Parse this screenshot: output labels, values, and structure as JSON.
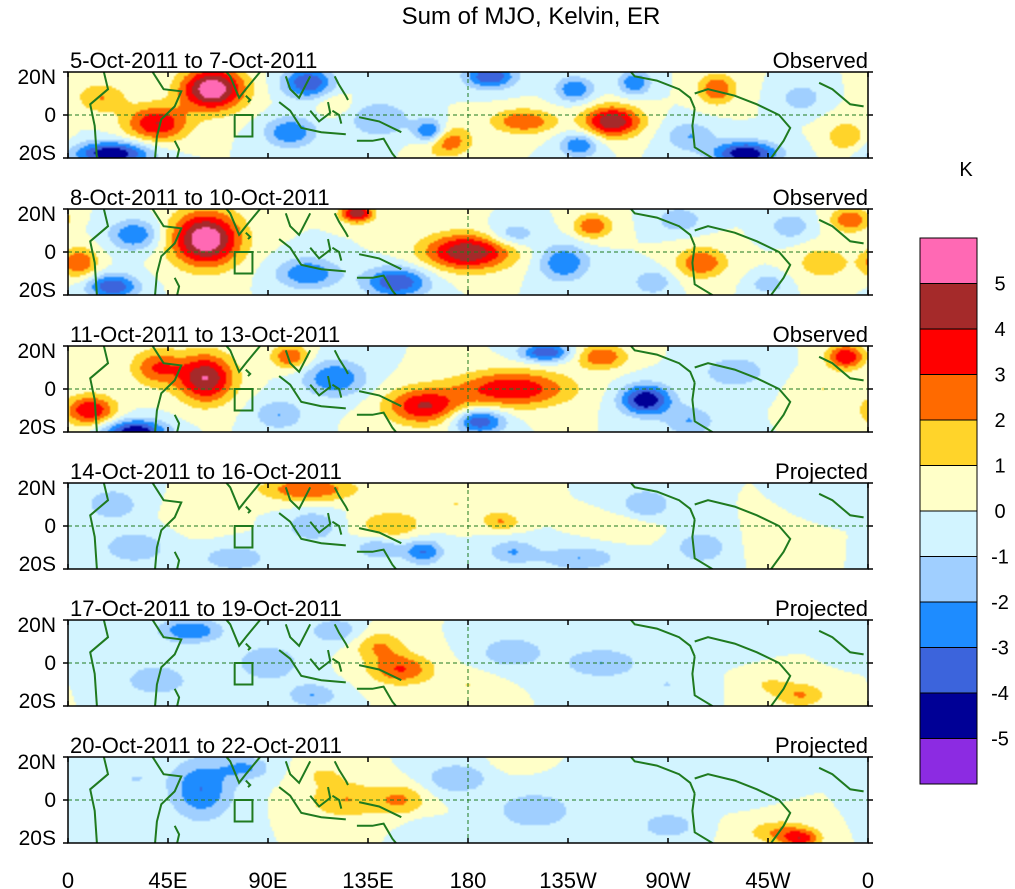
{
  "figure": {
    "title": "Sum of MJO, Kelvin, ER",
    "colorbar_unit": "K",
    "colorbar_levels": [
      "5",
      "4",
      "3",
      "2",
      "1",
      "0",
      "-1",
      "-2",
      "-3",
      "-4",
      "-5"
    ],
    "colorbar_colors": [
      "#ff69b4",
      "#a52a2a",
      "#ff0000",
      "#ff6a00",
      "#ffd42a",
      "#ffffc8",
      "#d2f4ff",
      "#a0cfff",
      "#1e8cff",
      "#3c64dc",
      "#000096",
      "#8c2be2"
    ],
    "x_ticks": [
      "0",
      "45E",
      "90E",
      "135E",
      "180",
      "135W",
      "90W",
      "45W",
      "0"
    ],
    "y_ticks": [
      "20N",
      "0",
      "20S"
    ]
  },
  "chart_data": {
    "type": "heatmap",
    "title": "Sum of MJO, Kelvin, ER",
    "unit": "K",
    "xlim": [
      0,
      360
    ],
    "ylim": [
      -20,
      20
    ],
    "color_levels": [
      -5,
      -4,
      -3,
      -2,
      -1,
      0,
      1,
      2,
      3,
      4,
      5
    ],
    "panels": [
      {
        "period": "5-Oct-2011 to 7-Oct-2011",
        "kind": "Observed",
        "blobs": [
          [
            65,
            12,
            10,
            7,
            6
          ],
          [
            40,
            -4,
            10,
            6,
            4
          ],
          [
            20,
            -18,
            12,
            4,
            -5
          ],
          [
            163,
            -8,
            5,
            4,
            -4
          ],
          [
            108,
            15,
            8,
            5,
            -4
          ],
          [
            190,
            18,
            8,
            4,
            -4
          ],
          [
            245,
            -3,
            9,
            5,
            5
          ],
          [
            228,
            12,
            6,
            4,
            -3
          ],
          [
            255,
            15,
            5,
            4,
            -3
          ],
          [
            205,
            -3,
            10,
            4,
            3
          ],
          [
            292,
            12,
            6,
            5,
            3
          ],
          [
            305,
            -18,
            10,
            4,
            -5
          ],
          [
            170,
            -12,
            8,
            5,
            3
          ],
          [
            330,
            8,
            6,
            4,
            -2
          ],
          [
            280,
            -10,
            8,
            5,
            -2
          ],
          [
            140,
            -2,
            10,
            6,
            -2
          ],
          [
            100,
            -8,
            8,
            5,
            -3
          ],
          [
            350,
            -10,
            6,
            5,
            2
          ],
          [
            230,
            -14,
            6,
            4,
            -3
          ],
          [
            15,
            8,
            8,
            5,
            2
          ],
          [
            120,
            5,
            6,
            4,
            1
          ]
        ]
      },
      {
        "period": "8-Oct-2011 to 10-Oct-2011",
        "kind": "Observed",
        "blobs": [
          [
            62,
            6,
            11,
            9,
            6
          ],
          [
            148,
            -14,
            10,
            5,
            -4
          ],
          [
            180,
            0,
            14,
            6,
            5
          ],
          [
            130,
            18,
            5,
            3,
            5
          ],
          [
            108,
            -10,
            10,
            5,
            -3
          ],
          [
            223,
            -5,
            8,
            6,
            -3
          ],
          [
            236,
            12,
            6,
            4,
            3
          ],
          [
            200,
            8,
            8,
            4,
            -2
          ],
          [
            275,
            15,
            7,
            4,
            -2
          ],
          [
            285,
            -5,
            8,
            5,
            3
          ],
          [
            340,
            -5,
            8,
            5,
            2
          ],
          [
            352,
            15,
            6,
            4,
            3
          ],
          [
            20,
            -16,
            8,
            4,
            -4
          ],
          [
            5,
            -5,
            6,
            5,
            3
          ],
          [
            30,
            8,
            8,
            5,
            -3
          ],
          [
            263,
            -14,
            6,
            4,
            -2
          ],
          [
            325,
            12,
            6,
            4,
            -2
          ],
          [
            315,
            -15,
            5,
            3,
            -2
          ]
        ]
      },
      {
        "period": "11-Oct-2011 to 13-Oct-2011",
        "kind": "Observed",
        "blobs": [
          [
            62,
            5,
            9,
            8,
            5
          ],
          [
            40,
            10,
            8,
            6,
            3
          ],
          [
            10,
            -10,
            8,
            5,
            4
          ],
          [
            30,
            -20,
            10,
            4,
            -5
          ],
          [
            160,
            -8,
            12,
            6,
            4
          ],
          [
            200,
            0,
            18,
            6,
            4
          ],
          [
            240,
            15,
            8,
            4,
            3
          ],
          [
            260,
            -5,
            8,
            5,
            -5
          ],
          [
            120,
            5,
            10,
            6,
            -3
          ],
          [
            95,
            -12,
            8,
            5,
            -2
          ],
          [
            185,
            -15,
            8,
            4,
            -4
          ],
          [
            300,
            8,
            10,
            5,
            -2
          ],
          [
            340,
            0,
            8,
            5,
            1
          ],
          [
            350,
            15,
            6,
            4,
            4
          ],
          [
            215,
            17,
            8,
            3,
            -4
          ],
          [
            100,
            15,
            6,
            4,
            3
          ],
          [
            280,
            -15,
            8,
            5,
            -2
          ]
        ]
      },
      {
        "period": "14-Oct-2011 to 16-Oct-2011",
        "kind": "Projected",
        "blobs": [
          [
            108,
            17,
            15,
            4,
            3
          ],
          [
            145,
            0,
            10,
            5,
            2
          ],
          [
            140,
            -10,
            8,
            4,
            -2
          ],
          [
            75,
            -15,
            10,
            4,
            -2
          ],
          [
            60,
            5,
            8,
            5,
            1
          ],
          [
            230,
            -15,
            12,
            4,
            -2
          ],
          [
            200,
            -12,
            8,
            4,
            -2
          ],
          [
            160,
            -12,
            6,
            4,
            -3
          ],
          [
            260,
            10,
            8,
            5,
            -2
          ],
          [
            285,
            -10,
            8,
            5,
            -2
          ],
          [
            320,
            -8,
            8,
            5,
            1
          ],
          [
            20,
            10,
            8,
            5,
            -2
          ],
          [
            30,
            -10,
            10,
            5,
            -2
          ],
          [
            110,
            0,
            8,
            5,
            -2
          ],
          [
            175,
            10,
            12,
            5,
            1
          ],
          [
            250,
            0,
            10,
            4,
            1
          ],
          [
            340,
            12,
            6,
            4,
            -1
          ],
          [
            195,
            2,
            6,
            3,
            2
          ]
        ]
      },
      {
        "period": "17-Oct-2011 to 19-Oct-2011",
        "kind": "Projected",
        "blobs": [
          [
            150,
            -3,
            10,
            5,
            3
          ],
          [
            140,
            8,
            8,
            5,
            2
          ],
          [
            120,
            15,
            8,
            4,
            -2
          ],
          [
            55,
            15,
            10,
            4,
            -3
          ],
          [
            40,
            -8,
            10,
            5,
            -2
          ],
          [
            90,
            0,
            10,
            6,
            -2
          ],
          [
            110,
            -15,
            8,
            4,
            -2
          ],
          [
            200,
            5,
            10,
            5,
            -2
          ],
          [
            240,
            0,
            12,
            5,
            -2
          ],
          [
            290,
            10,
            10,
            5,
            -1
          ],
          [
            315,
            -10,
            8,
            4,
            1
          ],
          [
            330,
            -15,
            8,
            4,
            2
          ],
          [
            270,
            -10,
            10,
            4,
            -1
          ],
          [
            180,
            -10,
            8,
            4,
            1
          ],
          [
            355,
            10,
            6,
            4,
            -1
          ]
        ]
      },
      {
        "period": "20-Oct-2011 to 22-Oct-2011",
        "kind": "Projected",
        "blobs": [
          [
            60,
            5,
            10,
            10,
            -3
          ],
          [
            80,
            15,
            8,
            4,
            -2
          ],
          [
            125,
            0,
            12,
            6,
            2
          ],
          [
            115,
            12,
            8,
            4,
            1
          ],
          [
            150,
            0,
            8,
            5,
            2
          ],
          [
            175,
            10,
            10,
            5,
            -2
          ],
          [
            210,
            -5,
            12,
            6,
            -2
          ],
          [
            250,
            5,
            10,
            5,
            -1
          ],
          [
            200,
            18,
            6,
            3,
            1
          ],
          [
            320,
            -15,
            10,
            4,
            2
          ],
          [
            330,
            -18,
            6,
            3,
            3
          ],
          [
            300,
            8,
            8,
            5,
            -1
          ],
          [
            20,
            -10,
            10,
            5,
            -1
          ],
          [
            30,
            10,
            8,
            4,
            -1
          ],
          [
            270,
            -12,
            8,
            4,
            -2
          ],
          [
            160,
            -15,
            6,
            4,
            -1
          ]
        ]
      }
    ]
  }
}
